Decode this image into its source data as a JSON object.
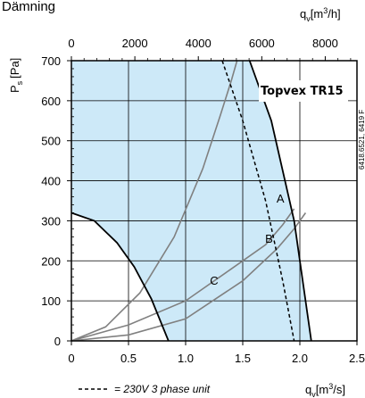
{
  "header_text": "Dämning",
  "chart_data": {
    "type": "line",
    "title": "Topvex TR15",
    "x_axis_bottom": {
      "label_main": "q",
      "label_sub": "v",
      "label_unit_pre": "[m",
      "label_unit_sup": "3",
      "label_unit_post": "/s]",
      "range": [
        0,
        2.5
      ],
      "ticks": [
        0,
        0.5,
        1.0,
        1.5,
        2.0,
        2.5
      ],
      "tick_labels": [
        "0",
        "0.5",
        "1.0",
        "1.5",
        "2.0",
        "2.5"
      ]
    },
    "x_axis_top": {
      "label_main": "q",
      "label_sub": "v",
      "label_unit_pre": "[m",
      "label_unit_sup": "3",
      "label_unit_post": "/h]",
      "range": [
        0,
        9000
      ],
      "ticks": [
        0,
        2000,
        4000,
        6000,
        8000
      ],
      "tick_labels": [
        "0",
        "2000",
        "4000",
        "6000",
        "8000"
      ]
    },
    "y_axis": {
      "label_main": "P",
      "label_sub": "s",
      "label_unit": "[Pa]",
      "range": [
        0,
        700
      ],
      "ticks": [
        0,
        100,
        200,
        300,
        400,
        500,
        600,
        700
      ],
      "tick_labels": [
        "0",
        "100",
        "200",
        "300",
        "400",
        "500",
        "600",
        "700"
      ]
    },
    "grid": true,
    "operating_region": {
      "color": "#cde9f8",
      "upper_left_boundary": [
        [
          0,
          320
        ],
        [
          0.2,
          300
        ],
        [
          0.4,
          245
        ],
        [
          0.55,
          185
        ],
        [
          0.7,
          105
        ],
        [
          0.85,
          0
        ]
      ],
      "upper_right_boundary": [
        [
          1.56,
          700
        ],
        [
          1.75,
          550
        ],
        [
          1.95,
          300
        ],
        [
          2.1,
          0
        ]
      ]
    },
    "system_curves": [
      {
        "name": "A",
        "points": [
          [
            0,
            0
          ],
          [
            0.3,
            35
          ],
          [
            0.6,
            120
          ],
          [
            0.9,
            260
          ],
          [
            1.15,
            430
          ],
          [
            1.3,
            560
          ],
          [
            1.4,
            650
          ],
          [
            1.45,
            700
          ]
        ]
      },
      {
        "name": "B",
        "points": [
          [
            0,
            0
          ],
          [
            0.5,
            40
          ],
          [
            1.0,
            100
          ],
          [
            1.4,
            180
          ],
          [
            1.7,
            240
          ],
          [
            1.85,
            290
          ],
          [
            1.95,
            330
          ]
        ]
      },
      {
        "name": "C",
        "points": [
          [
            0,
            0
          ],
          [
            0.5,
            15
          ],
          [
            1.0,
            55
          ],
          [
            1.5,
            150
          ],
          [
            1.8,
            230
          ],
          [
            1.95,
            280
          ],
          [
            2.05,
            320
          ]
        ]
      }
    ],
    "curve_labels": [
      {
        "text": "A",
        "x": 1.83,
        "y": 345
      },
      {
        "text": "B",
        "x": 1.73,
        "y": 245
      },
      {
        "text": "C",
        "x": 1.25,
        "y": 140
      }
    ],
    "series_230v": {
      "style": "dashed",
      "points": [
        [
          1.32,
          700
        ],
        [
          1.5,
          550
        ],
        [
          1.7,
          350
        ],
        [
          1.85,
          150
        ],
        [
          1.95,
          0
        ]
      ]
    },
    "legend_text": "= 230V 3 phase unit",
    "side_code": "6418.6521, 6419 F"
  }
}
